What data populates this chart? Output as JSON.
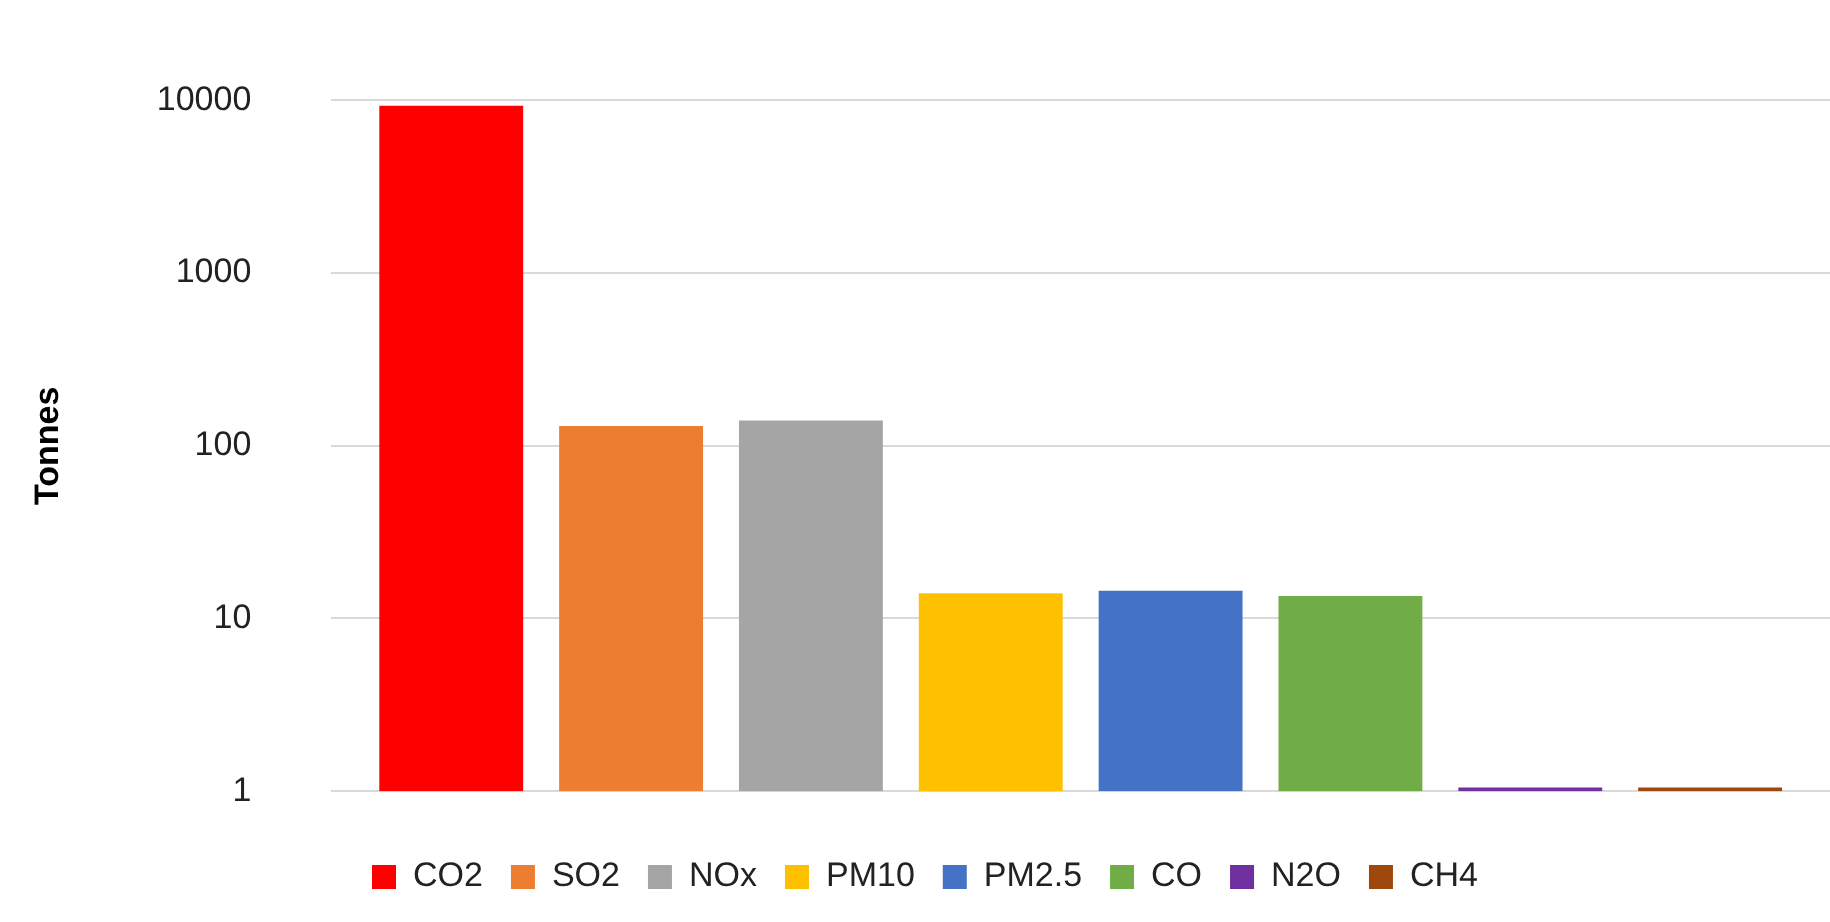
{
  "chart_data": {
    "type": "bar",
    "ylabel": "Tonnes",
    "categories": [
      null
    ],
    "series": [
      {
        "name": "CO2",
        "color": "#ff0000",
        "values": [
          9300
        ]
      },
      {
        "name": "SO2",
        "color": "#ed7d31",
        "values": [
          130
        ]
      },
      {
        "name": "NOx",
        "color": "#a5a5a5",
        "values": [
          140
        ]
      },
      {
        "name": "PM10",
        "color": "#ffc000",
        "values": [
          14
        ]
      },
      {
        "name": "PM2.5",
        "color": "#4472c4",
        "values": [
          14.5
        ]
      },
      {
        "name": "CO",
        "color": "#70ad47",
        "values": [
          13.5
        ]
      },
      {
        "name": "N2O",
        "color": "#7030a0",
        "values": [
          1.05
        ]
      },
      {
        "name": "CH4",
        "color": "#9e480e",
        "values": [
          1.05
        ]
      }
    ],
    "log": "y",
    "ylim": [
      1,
      10000
    ],
    "yticks": [
      1,
      10,
      100,
      1000,
      10000
    ],
    "grid": "y",
    "legend": "bottom"
  }
}
